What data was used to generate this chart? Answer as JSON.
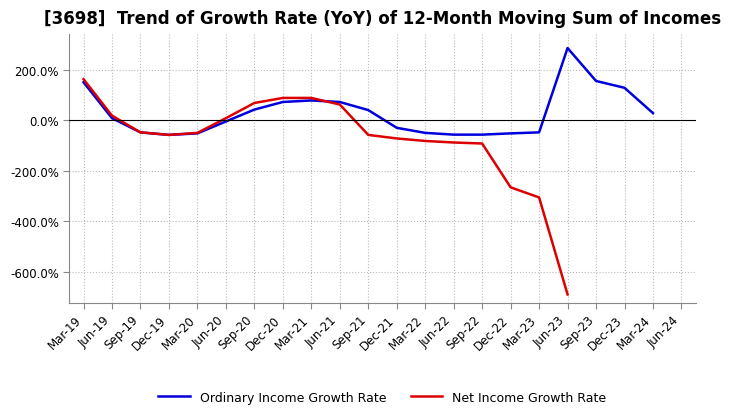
{
  "title": "[3698]  Trend of Growth Rate (YoY) of 12-Month Moving Sum of Incomes",
  "x_labels": [
    "Mar-19",
    "Jun-19",
    "Sep-19",
    "Dec-19",
    "Mar-20",
    "Jun-20",
    "Sep-20",
    "Dec-20",
    "Mar-21",
    "Jun-21",
    "Sep-21",
    "Dec-21",
    "Mar-22",
    "Jun-22",
    "Sep-22",
    "Dec-22",
    "Mar-23",
    "Jun-23",
    "Sep-23",
    "Dec-23",
    "Mar-24",
    "Jun-24"
  ],
  "ordinary_income": [
    150,
    8,
    -48,
    -58,
    -52,
    -5,
    42,
    72,
    78,
    72,
    40,
    -30,
    -50,
    -57,
    -57,
    -52,
    -48,
    285,
    155,
    128,
    28,
    null
  ],
  "net_income": [
    162,
    18,
    -48,
    -58,
    -50,
    8,
    68,
    88,
    88,
    62,
    -58,
    -72,
    -82,
    -88,
    -92,
    -265,
    -305,
    -688,
    null,
    null,
    null,
    null
  ],
  "ordinary_color": "#0000DD",
  "net_color": "#DD0000",
  "ylim_min": -720,
  "ylim_max": 340,
  "yticks": [
    200,
    0,
    -200,
    -400,
    -600
  ],
  "ytick_labels": [
    "200.0%",
    "0.0%",
    "-200.0%",
    "-400.0%",
    "-600.0%"
  ],
  "plot_bg_color": "#FFFFFF",
  "fig_bg_color": "#FFFFFF",
  "grid_color": "#BBBBBB",
  "legend_ordinary": "Ordinary Income Growth Rate",
  "legend_net": "Net Income Growth Rate",
  "title_fontsize": 12,
  "tick_fontsize": 8.5,
  "legend_fontsize": 9,
  "linewidth": 1.8
}
